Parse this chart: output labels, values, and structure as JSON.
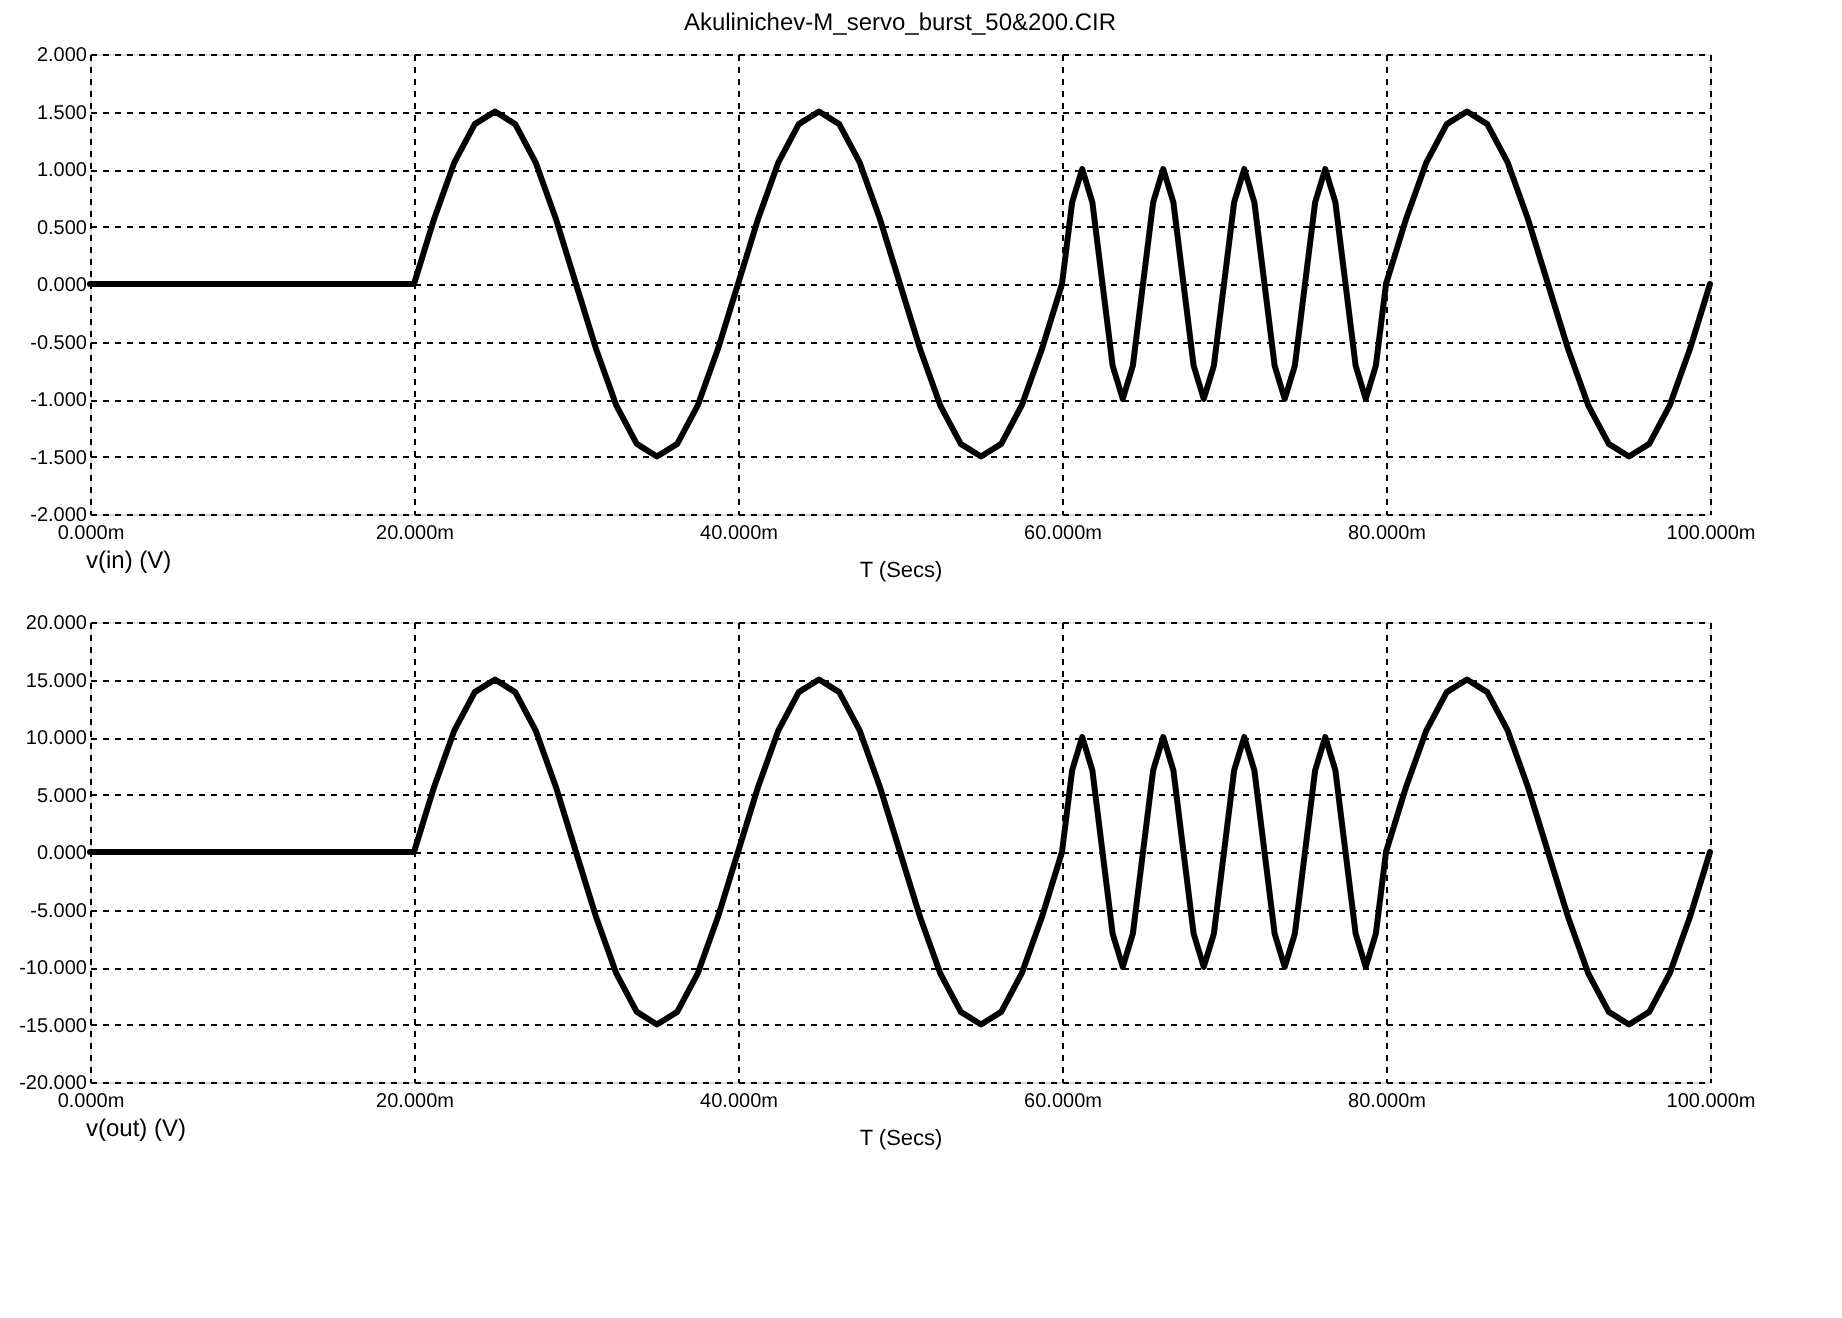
{
  "chart_data": [
    {
      "type": "line",
      "title": "Akulinichev-M_servo_burst_50&200.CIR",
      "xlabel": "T (Secs)",
      "legend": "bottom left",
      "grid": true,
      "xlim": [
        0,
        100
      ],
      "xticks": [
        {
          "value": 0,
          "label": "0.000m"
        },
        {
          "value": 20,
          "label": "20.000m"
        },
        {
          "value": 40,
          "label": "40.000m"
        },
        {
          "value": 60,
          "label": "60.000m"
        },
        {
          "value": 80,
          "label": "80.000m"
        },
        {
          "value": 100,
          "label": "100.000m"
        }
      ],
      "ylim": [
        -2,
        2
      ],
      "yticks": [
        {
          "value": -2,
          "label": "-2.000"
        },
        {
          "value": -1.5,
          "label": "-1.500"
        },
        {
          "value": -1,
          "label": "-1.000"
        },
        {
          "value": -0.5,
          "label": "-0.500"
        },
        {
          "value": 0,
          "label": "0.000"
        },
        {
          "value": 0.5,
          "label": "0.500"
        },
        {
          "value": 1,
          "label": "1.000"
        },
        {
          "value": 1.5,
          "label": "1.500"
        },
        {
          "value": 2,
          "label": "2.000"
        }
      ],
      "x": [
        0,
        20,
        21.25,
        22.5,
        23.75,
        25,
        26.25,
        27.5,
        28.75,
        30,
        31.25,
        32.5,
        33.75,
        35,
        36.25,
        37.5,
        38.75,
        40,
        41.25,
        42.5,
        43.75,
        45,
        46.25,
        47.5,
        48.75,
        50,
        51.25,
        52.5,
        53.75,
        55,
        56.25,
        57.5,
        58.75,
        60,
        60.625,
        61.25,
        61.875,
        62.5,
        63.125,
        63.75,
        64.375,
        65,
        65.625,
        66.25,
        66.875,
        67.5,
        68.125,
        68.75,
        69.375,
        70,
        70.625,
        71.25,
        71.875,
        72.5,
        73.125,
        73.75,
        74.375,
        75,
        75.625,
        76.25,
        76.875,
        77.5,
        78.125,
        78.75,
        79.375,
        80,
        81.25,
        82.5,
        83.75,
        85,
        86.25,
        87.5,
        88.75,
        90,
        91.25,
        92.5,
        93.75,
        95,
        96.25,
        97.5,
        98.75,
        100
      ],
      "series": [
        {
          "name": "v(in) (V)",
          "color": "#000000",
          "values": [
            0,
            0,
            0.57,
            1.06,
            1.39,
            1.5,
            1.39,
            1.06,
            0.57,
            0,
            -0.57,
            -1.06,
            -1.39,
            -1.5,
            -1.39,
            -1.06,
            -0.57,
            0,
            0.57,
            1.06,
            1.39,
            1.5,
            1.39,
            1.06,
            0.57,
            0,
            -0.57,
            -1.06,
            -1.39,
            -1.5,
            -1.39,
            -1.06,
            -0.57,
            0,
            0.71,
            1,
            0.71,
            0,
            -0.71,
            -1,
            -0.71,
            0,
            0.71,
            1,
            0.71,
            0,
            -0.71,
            -1,
            -0.71,
            0,
            0.71,
            1,
            0.71,
            0,
            -0.71,
            -1,
            -0.71,
            0,
            0.71,
            1,
            0.71,
            0,
            -0.71,
            -1,
            -0.71,
            0,
            0.57,
            1.06,
            1.39,
            1.5,
            1.39,
            1.06,
            0.57,
            0,
            -0.57,
            -1.06,
            -1.39,
            -1.5,
            -1.39,
            -1.06,
            -0.57,
            0
          ]
        }
      ]
    },
    {
      "type": "line",
      "xlabel": "T (Secs)",
      "legend": "bottom left",
      "grid": true,
      "xlim": [
        0,
        100
      ],
      "xticks": [
        {
          "value": 0,
          "label": "0.000m"
        },
        {
          "value": 20,
          "label": "20.000m"
        },
        {
          "value": 40,
          "label": "40.000m"
        },
        {
          "value": 60,
          "label": "60.000m"
        },
        {
          "value": 80,
          "label": "80.000m"
        },
        {
          "value": 100,
          "label": "100.000m"
        }
      ],
      "ylim": [
        -20,
        20
      ],
      "yticks": [
        {
          "value": -20,
          "label": "-20.000"
        },
        {
          "value": -15,
          "label": "-15.000"
        },
        {
          "value": -10,
          "label": "-10.000"
        },
        {
          "value": -5,
          "label": "-5.000"
        },
        {
          "value": 0,
          "label": "0.000"
        },
        {
          "value": 5,
          "label": "5.000"
        },
        {
          "value": 10,
          "label": "10.000"
        },
        {
          "value": 15,
          "label": "15.000"
        },
        {
          "value": 20,
          "label": "20.000"
        }
      ],
      "x": [
        0,
        20,
        21.25,
        22.5,
        23.75,
        25,
        26.25,
        27.5,
        28.75,
        30,
        31.25,
        32.5,
        33.75,
        35,
        36.25,
        37.5,
        38.75,
        40,
        41.25,
        42.5,
        43.75,
        45,
        46.25,
        47.5,
        48.75,
        50,
        51.25,
        52.5,
        53.75,
        55,
        56.25,
        57.5,
        58.75,
        60,
        60.625,
        61.25,
        61.875,
        62.5,
        63.125,
        63.75,
        64.375,
        65,
        65.625,
        66.25,
        66.875,
        67.5,
        68.125,
        68.75,
        69.375,
        70,
        70.625,
        71.25,
        71.875,
        72.5,
        73.125,
        73.75,
        74.375,
        75,
        75.625,
        76.25,
        76.875,
        77.5,
        78.125,
        78.75,
        79.375,
        80,
        81.25,
        82.5,
        83.75,
        85,
        86.25,
        87.5,
        88.75,
        90,
        91.25,
        92.5,
        93.75,
        95,
        96.25,
        97.5,
        98.75,
        100
      ],
      "series": [
        {
          "name": "v(out) (V)",
          "color": "#000000",
          "values": [
            0,
            0,
            5.7,
            10.6,
            13.9,
            15,
            13.9,
            10.6,
            5.7,
            0,
            -5.7,
            -10.6,
            -13.9,
            -15,
            -13.9,
            -10.6,
            -5.7,
            0,
            5.7,
            10.6,
            13.9,
            15,
            13.9,
            10.6,
            5.7,
            0,
            -5.7,
            -10.6,
            -13.9,
            -15,
            -13.9,
            -10.6,
            -5.7,
            0,
            7.1,
            10,
            7.1,
            0,
            -7.1,
            -10,
            -7.1,
            0,
            7.1,
            10,
            7.1,
            0,
            -7.1,
            -10,
            -7.1,
            0,
            7.1,
            10,
            7.1,
            0,
            -7.1,
            -10,
            -7.1,
            0,
            7.1,
            10,
            7.1,
            0,
            -7.1,
            -10,
            -7.1,
            0,
            5.7,
            10.6,
            13.9,
            15,
            13.9,
            10.6,
            5.7,
            0,
            -5.7,
            -10.6,
            -13.9,
            -15,
            -13.9,
            -10.6,
            -5.7,
            0
          ]
        }
      ]
    }
  ]
}
